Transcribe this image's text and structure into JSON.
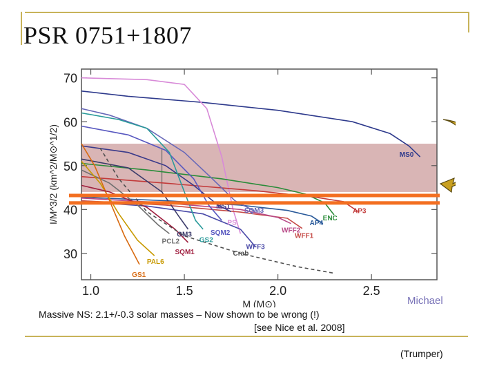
{
  "slide": {
    "title": "PSR 0751+1807",
    "caption_line1": "Massive NS: 2.1+/-0.3 solar masses – Now shown to be wrong (!)",
    "caption_line2": "[see Nice et al. 2008]",
    "credit": "Michael",
    "source": "(Trumper)"
  },
  "colors": {
    "frame": "#c8b35a",
    "band": "#d9b5b5",
    "orange_line": "#f36f21",
    "arrow": "#c9a020"
  },
  "chart_data": {
    "type": "line",
    "title": "",
    "xlabel": "M (M⊙)",
    "ylabel": "I/M^3/2 (km^2/M⊙^1/2)",
    "xlim": [
      0.95,
      2.85
    ],
    "ylim": [
      24,
      72
    ],
    "xticks": [
      1.0,
      1.5,
      2.0,
      2.5
    ],
    "xtick_labels": [
      "1.0",
      "1.5",
      "2.0",
      "2.5"
    ],
    "yticks": [
      30,
      40,
      50,
      60,
      70
    ],
    "ytick_labels": [
      "30",
      "40",
      "50",
      "60",
      "70"
    ],
    "band": {
      "y_low": 44,
      "y_high": 55
    },
    "error_bar": {
      "x": 1.38,
      "y_low": 44,
      "y_high": 54
    },
    "reference_lines": [
      41.5,
      43.2
    ],
    "series": [
      {
        "name": "MS0",
        "color": "#2e3a8c",
        "dash": false,
        "points": [
          [
            0.95,
            67
          ],
          [
            1.2,
            65.8
          ],
          [
            1.6,
            64.4
          ],
          [
            2.0,
            62.6
          ],
          [
            2.4,
            60
          ],
          [
            2.6,
            57.3
          ],
          [
            2.7,
            54.5
          ],
          [
            2.76,
            52
          ]
        ]
      },
      {
        "name": "PS",
        "color": "#d88ad8",
        "dash": false,
        "points": [
          [
            0.95,
            70
          ],
          [
            1.3,
            69.6
          ],
          [
            1.5,
            68.5
          ],
          [
            1.62,
            63
          ],
          [
            1.7,
            52
          ],
          [
            1.76,
            40
          ],
          [
            1.8,
            34.5
          ]
        ]
      },
      {
        "name": "ENC",
        "color": "#2b8c3a",
        "dash": false,
        "points": [
          [
            0.95,
            50.5
          ],
          [
            1.3,
            49
          ],
          [
            1.7,
            47
          ],
          [
            2.0,
            45
          ],
          [
            2.15,
            43.5
          ],
          [
            2.25,
            41.5
          ],
          [
            2.3,
            38.8
          ]
        ]
      },
      {
        "name": "AP3",
        "color": "#c23a3a",
        "dash": false,
        "points": [
          [
            0.95,
            47.5
          ],
          [
            1.4,
            46
          ],
          [
            1.9,
            44.2
          ],
          [
            2.2,
            42.8
          ],
          [
            2.35,
            41.8
          ],
          [
            2.43,
            39.5
          ]
        ]
      },
      {
        "name": "AP4",
        "color": "#2a5a9a",
        "dash": false,
        "points": [
          [
            0.95,
            42.8
          ],
          [
            1.4,
            42
          ],
          [
            1.8,
            41
          ],
          [
            2.05,
            39.8
          ],
          [
            2.18,
            38.5
          ],
          [
            2.24,
            36.8
          ]
        ]
      },
      {
        "name": "WFF1",
        "color": "#c64c48",
        "dash": false,
        "points": [
          [
            0.95,
            42
          ],
          [
            1.4,
            41
          ],
          [
            1.8,
            39.4
          ],
          [
            2.05,
            38
          ],
          [
            2.13,
            35.7
          ]
        ]
      },
      {
        "name": "WFF2",
        "color": "#b84a88",
        "dash": false,
        "points": [
          [
            0.95,
            42.6
          ],
          [
            1.4,
            41.5
          ],
          [
            1.8,
            40
          ],
          [
            2.0,
            38.2
          ],
          [
            2.07,
            36.8
          ]
        ]
      },
      {
        "name": "WFF3",
        "color": "#4a4aa8",
        "dash": false,
        "points": [
          [
            0.95,
            41.8
          ],
          [
            1.3,
            40.8
          ],
          [
            1.6,
            39
          ],
          [
            1.8,
            35.5
          ],
          [
            1.88,
            31.5
          ]
        ]
      },
      {
        "name": "SQM3",
        "color": "#6868b8",
        "dash": false,
        "points": [
          [
            0.95,
            63
          ],
          [
            1.1,
            61.5
          ],
          [
            1.3,
            58.5
          ],
          [
            1.5,
            53
          ],
          [
            1.65,
            47
          ],
          [
            1.77,
            42
          ],
          [
            1.88,
            39.5
          ]
        ]
      },
      {
        "name": "MS1",
        "color": "#3a3a8a",
        "dash": false,
        "points": [
          [
            0.95,
            54.5
          ],
          [
            1.2,
            53
          ],
          [
            1.4,
            50
          ],
          [
            1.55,
            45.5
          ],
          [
            1.68,
            41
          ],
          [
            1.75,
            39.5
          ]
        ]
      },
      {
        "name": "SQM2",
        "color": "#5858c0",
        "dash": false,
        "points": [
          [
            0.95,
            59
          ],
          [
            1.2,
            57
          ],
          [
            1.4,
            53.5
          ],
          [
            1.55,
            47
          ],
          [
            1.63,
            41
          ],
          [
            1.7,
            37.5
          ]
        ]
      },
      {
        "name": "GS2",
        "color": "#2a9a9a",
        "dash": false,
        "points": [
          [
            0.95,
            62
          ],
          [
            1.15,
            60.5
          ],
          [
            1.3,
            58.5
          ],
          [
            1.42,
            53
          ],
          [
            1.5,
            44
          ],
          [
            1.56,
            37.5
          ],
          [
            1.6,
            35.5
          ]
        ]
      },
      {
        "name": "GM3",
        "color": "#3a3a6a",
        "dash": false,
        "points": [
          [
            0.95,
            51.5
          ],
          [
            1.2,
            49.5
          ],
          [
            1.38,
            44
          ],
          [
            1.47,
            38.5
          ],
          [
            1.52,
            35.5
          ]
        ]
      },
      {
        "name": "PCL2",
        "color": "#707070",
        "dash": false,
        "points": [
          [
            0.95,
            49
          ],
          [
            1.1,
            46
          ],
          [
            1.25,
            41
          ],
          [
            1.36,
            36.5
          ],
          [
            1.42,
            34.5
          ]
        ]
      },
      {
        "name": "PAL6",
        "color": "#c89a00",
        "dash": false,
        "points": [
          [
            0.95,
            51
          ],
          [
            1.05,
            46
          ],
          [
            1.15,
            39
          ],
          [
            1.25,
            33
          ],
          [
            1.34,
            29.5
          ]
        ]
      },
      {
        "name": "GS1",
        "color": "#d86a10",
        "dash": false,
        "points": [
          [
            0.95,
            55
          ],
          [
            1.02,
            50
          ],
          [
            1.1,
            42
          ],
          [
            1.18,
            34
          ],
          [
            1.26,
            27.5
          ]
        ]
      },
      {
        "name": "SQM1",
        "color": "#a02040",
        "dash": false,
        "points": [
          [
            0.95,
            45.5
          ],
          [
            1.1,
            44
          ],
          [
            1.3,
            40.5
          ],
          [
            1.45,
            35.5
          ],
          [
            1.52,
            32.5
          ]
        ]
      },
      {
        "name": "Crab",
        "color": "#505050",
        "dash": true,
        "points": [
          [
            1.05,
            54
          ],
          [
            1.15,
            47
          ],
          [
            1.3,
            39.5
          ],
          [
            1.5,
            34
          ],
          [
            1.8,
            30
          ],
          [
            2.1,
            27
          ],
          [
            2.3,
            25.5
          ]
        ]
      }
    ],
    "labels": [
      {
        "text": "MS0",
        "x": 2.65,
        "y": 52,
        "color": "#2e3a8c"
      },
      {
        "text": "MS1",
        "x": 1.67,
        "y": 40.2,
        "color": "#3a3a8a"
      },
      {
        "text": "SQM3",
        "x": 1.82,
        "y": 39.3,
        "color": "#6868b8"
      },
      {
        "text": "ENC",
        "x": 2.24,
        "y": 37.5,
        "color": "#2b8c3a"
      },
      {
        "text": "AP3",
        "x": 2.4,
        "y": 39.2,
        "color": "#c23a3a"
      },
      {
        "text": "AP4",
        "x": 2.17,
        "y": 36.4,
        "color": "#2a5a9a"
      },
      {
        "text": "PS",
        "x": 1.73,
        "y": 36.5,
        "color": "#d88ad8"
      },
      {
        "text": "WFF2",
        "x": 2.02,
        "y": 34.8,
        "color": "#b84a88"
      },
      {
        "text": "WFF1",
        "x": 2.09,
        "y": 33.5,
        "color": "#c64c48"
      },
      {
        "text": "SQM2",
        "x": 1.64,
        "y": 34.2,
        "color": "#5858c0"
      },
      {
        "text": "GM3",
        "x": 1.46,
        "y": 33.8,
        "color": "#3a3a6a"
      },
      {
        "text": "GS2",
        "x": 1.58,
        "y": 32.6,
        "color": "#2a9a9a"
      },
      {
        "text": "PCL2",
        "x": 1.38,
        "y": 32.3,
        "color": "#707070"
      },
      {
        "text": "WFF3",
        "x": 1.83,
        "y": 31,
        "color": "#4a4aa8"
      },
      {
        "text": "SQM1",
        "x": 1.45,
        "y": 29.8,
        "color": "#a02040"
      },
      {
        "text": "Crab",
        "x": 1.76,
        "y": 29.5,
        "color": "#505050"
      },
      {
        "text": "PAL6",
        "x": 1.3,
        "y": 27.6,
        "color": "#c89a00"
      },
      {
        "text": "GS1",
        "x": 1.22,
        "y": 24.6,
        "color": "#d86a10"
      }
    ]
  }
}
